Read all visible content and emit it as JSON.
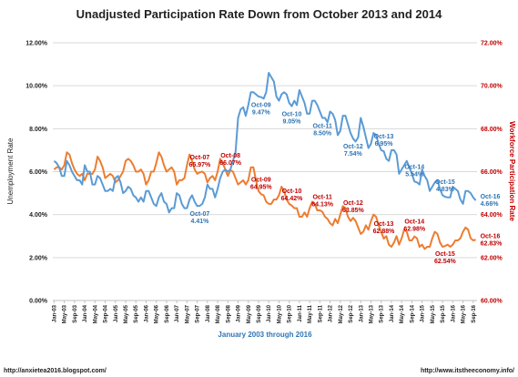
{
  "chart_data": {
    "type": "line",
    "title": "Unadjusted Participation Rate Down from October 2013 and 2014",
    "xlabel": "January 2003 through 2016",
    "ylabel_left": "Unemployment Rate",
    "ylabel_right": "Workforce Participation Rate",
    "ylim_left": [
      0,
      12
    ],
    "ylim_right": [
      60,
      72
    ],
    "yticks_left": [
      "0.00%",
      "2.00%",
      "4.00%",
      "6.00%",
      "8.00%",
      "10.00%",
      "12.00%"
    ],
    "yticks_right": [
      "60.00%",
      "62.00%",
      "64.00%",
      "66.00%",
      "68.00%",
      "70.00%",
      "72.00%"
    ],
    "x_ticks": [
      "Jan-03",
      "May-03",
      "Sep-03",
      "Jan-04",
      "May-04",
      "Sep-04",
      "Jan-05",
      "May-05",
      "Sep-05",
      "Jan-06",
      "May-06",
      "Sep-06",
      "Jan-07",
      "May-07",
      "Sep-07",
      "Jan-08",
      "May-08",
      "Sep-08",
      "Jan-09",
      "May-09",
      "Sep-09",
      "Jan-10",
      "May-10",
      "Sep-10",
      "Jan-11",
      "May-11",
      "Sep-11",
      "Jan-12",
      "May-12",
      "Sep-12",
      "Jan-13",
      "May-13",
      "Sep-13",
      "Jan-14",
      "May-14",
      "Sep-14",
      "Jan-15",
      "May-15",
      "Sep-15",
      "Jan-16",
      "May-16",
      "Sep-16"
    ],
    "grid": true,
    "series": [
      {
        "name": "Unemployment Rate",
        "axis": "left",
        "color": "#5b9bd5",
        "values": [
          6.5,
          6.4,
          6.2,
          5.8,
          5.8,
          6.5,
          6.3,
          6.0,
          5.8,
          5.6,
          5.6,
          5.4,
          6.3,
          6.0,
          6.0,
          5.4,
          5.4,
          5.8,
          5.7,
          5.4,
          5.1,
          5.1,
          5.2,
          5.1,
          5.7,
          5.8,
          5.5,
          5.0,
          5.1,
          5.3,
          5.2,
          4.9,
          4.8,
          4.6,
          4.8,
          4.6,
          5.1,
          5.1,
          4.8,
          4.5,
          4.4,
          4.8,
          5.0,
          4.6,
          4.5,
          4.1,
          4.3,
          4.3,
          5.0,
          4.9,
          4.5,
          4.3,
          4.3,
          4.7,
          4.9,
          4.6,
          4.4,
          4.41,
          4.5,
          4.8,
          5.4,
          5.2,
          5.2,
          4.8,
          5.2,
          5.7,
          6.0,
          6.1,
          6.0,
          6.1,
          6.5,
          6.9,
          8.5,
          8.9,
          9.0,
          8.6,
          9.1,
          9.7,
          9.7,
          9.6,
          9.5,
          9.47,
          9.4,
          9.7,
          10.6,
          10.4,
          10.2,
          9.5,
          9.3,
          9.6,
          9.7,
          9.6,
          9.2,
          9.05,
          9.3,
          9.1,
          9.8,
          9.5,
          9.2,
          8.7,
          8.7,
          9.3,
          9.3,
          9.1,
          8.8,
          8.5,
          8.5,
          8.3,
          8.8,
          8.7,
          8.4,
          7.7,
          7.9,
          8.6,
          8.6,
          8.2,
          7.8,
          7.54,
          7.4,
          7.6,
          8.5,
          8.1,
          7.6,
          7.1,
          7.3,
          7.8,
          7.7,
          7.3,
          7.0,
          6.95,
          6.6,
          6.5,
          7.0,
          7.0,
          6.8,
          5.9,
          6.1,
          6.3,
          6.5,
          6.2,
          5.9,
          5.54,
          5.5,
          5.4,
          6.1,
          5.8,
          5.6,
          5.1,
          5.3,
          5.5,
          5.6,
          5.2,
          4.9,
          4.83,
          4.8,
          4.8,
          5.3,
          5.2,
          5.1,
          4.7,
          4.5,
          5.1,
          5.1,
          5.0,
          4.8,
          4.66
        ]
      },
      {
        "name": "Workforce Participation Rate",
        "axis": "right",
        "color": "#ed7d31",
        "values": [
          66.1,
          66.2,
          66.2,
          66.1,
          66.3,
          66.9,
          66.8,
          66.4,
          66.1,
          65.9,
          65.8,
          65.9,
          65.6,
          65.9,
          65.9,
          65.9,
          66.1,
          66.7,
          66.5,
          66.2,
          65.7,
          65.8,
          65.9,
          65.8,
          65.5,
          65.6,
          65.8,
          66.0,
          66.5,
          66.6,
          66.5,
          66.3,
          66.0,
          66.0,
          66.1,
          65.9,
          65.4,
          65.6,
          66.0,
          66.0,
          66.4,
          66.9,
          66.7,
          66.3,
          66.0,
          66.1,
          66.2,
          66.0,
          65.4,
          65.6,
          65.6,
          65.7,
          66.3,
          66.8,
          66.5,
          66.1,
          65.9,
          65.97,
          66.0,
          65.9,
          65.5,
          65.7,
          65.8,
          65.6,
          66.0,
          66.6,
          66.4,
          66.1,
          65.8,
          66.07,
          66.0,
          65.7,
          65.4,
          65.5,
          65.6,
          65.4,
          65.6,
          66.2,
          66.2,
          65.6,
          65.1,
          64.95,
          64.9,
          64.6,
          64.5,
          64.5,
          64.7,
          64.7,
          64.9,
          65.3,
          65.1,
          64.7,
          64.5,
          64.42,
          64.3,
          64.3,
          63.9,
          63.9,
          64.1,
          63.9,
          64.3,
          64.6,
          64.5,
          64.2,
          64.2,
          64.13,
          63.9,
          63.8,
          63.6,
          63.5,
          63.8,
          63.6,
          64.0,
          64.4,
          64.3,
          63.9,
          63.7,
          63.85,
          63.7,
          63.4,
          63.1,
          63.2,
          63.5,
          63.3,
          63.7,
          64.0,
          63.9,
          63.5,
          63.2,
          62.88,
          63.0,
          62.6,
          62.5,
          62.7,
          63.0,
          62.6,
          62.9,
          63.3,
          63.2,
          62.8,
          62.8,
          62.98,
          62.9,
          62.5,
          62.6,
          62.4,
          62.5,
          62.5,
          62.9,
          63.2,
          63.1,
          62.7,
          62.5,
          62.54,
          62.6,
          62.5,
          62.6,
          62.8,
          62.8,
          62.9,
          63.2,
          63.4,
          63.3,
          62.9,
          62.8,
          62.83
        ]
      }
    ],
    "annotations": [
      {
        "series": "Unemployment Rate",
        "index": 57,
        "month": "Oct-07",
        "value": "4.41%",
        "place": "below"
      },
      {
        "series": "Unemployment Rate",
        "index": 81,
        "month": "Oct-09",
        "value": "9.47%",
        "place": "below"
      },
      {
        "series": "Unemployment Rate",
        "index": 93,
        "month": "Oct-10",
        "value": "9.05%",
        "place": "below"
      },
      {
        "series": "Unemployment Rate",
        "index": 105,
        "month": "Oct-11",
        "value": "8.50%",
        "place": "below"
      },
      {
        "series": "Unemployment Rate",
        "index": 117,
        "month": "Oct-12",
        "value": "7.54%",
        "place": "below"
      },
      {
        "series": "Unemployment Rate",
        "index": 129,
        "month": "Oct-13",
        "value": "6.95%",
        "place": "above"
      },
      {
        "series": "Unemployment Rate",
        "index": 141,
        "month": "Oct-14",
        "value": "5.54%",
        "place": "above"
      },
      {
        "series": "Unemployment Rate",
        "index": 153,
        "month": "Oct-15",
        "value": "4.83%",
        "place": "above"
      },
      {
        "series": "Unemployment Rate",
        "index": 165,
        "month": "Oct-16",
        "value": "4.66%",
        "place": "right"
      },
      {
        "series": "Workforce Participation Rate",
        "index": 57,
        "month": "Oct-07",
        "value": "65.97%",
        "place": "above"
      },
      {
        "series": "Workforce Participation Rate",
        "index": 69,
        "month": "Oct-08",
        "value": "66.07%",
        "place": "above"
      },
      {
        "series": "Workforce Participation Rate",
        "index": 81,
        "month": "Oct-09",
        "value": "64.95%",
        "place": "above"
      },
      {
        "series": "Workforce Participation Rate",
        "index": 93,
        "month": "Oct-10",
        "value": "64.42%",
        "place": "above"
      },
      {
        "series": "Workforce Participation Rate",
        "index": 105,
        "month": "Oct-11",
        "value": "64.13%",
        "place": "above"
      },
      {
        "series": "Workforce Participation Rate",
        "index": 117,
        "month": "Oct-12",
        "value": "63.85%",
        "place": "above"
      },
      {
        "series": "Workforce Participation Rate",
        "index": 129,
        "month": "Oct-13",
        "value": "62.88%",
        "place": "above"
      },
      {
        "series": "Workforce Participation Rate",
        "index": 141,
        "month": "Oct-14",
        "value": "62.98%",
        "place": "above"
      },
      {
        "series": "Workforce Participation Rate",
        "index": 153,
        "month": "Oct-15",
        "value": "62.54%",
        "place": "below"
      },
      {
        "series": "Workforce Participation Rate",
        "index": 165,
        "month": "Oct-16",
        "value": "62.83%",
        "place": "right"
      }
    ]
  },
  "footer": {
    "left": "http://anxietea2016.blogspot.com/",
    "right": "http://www.itstheeconomy.info/"
  }
}
